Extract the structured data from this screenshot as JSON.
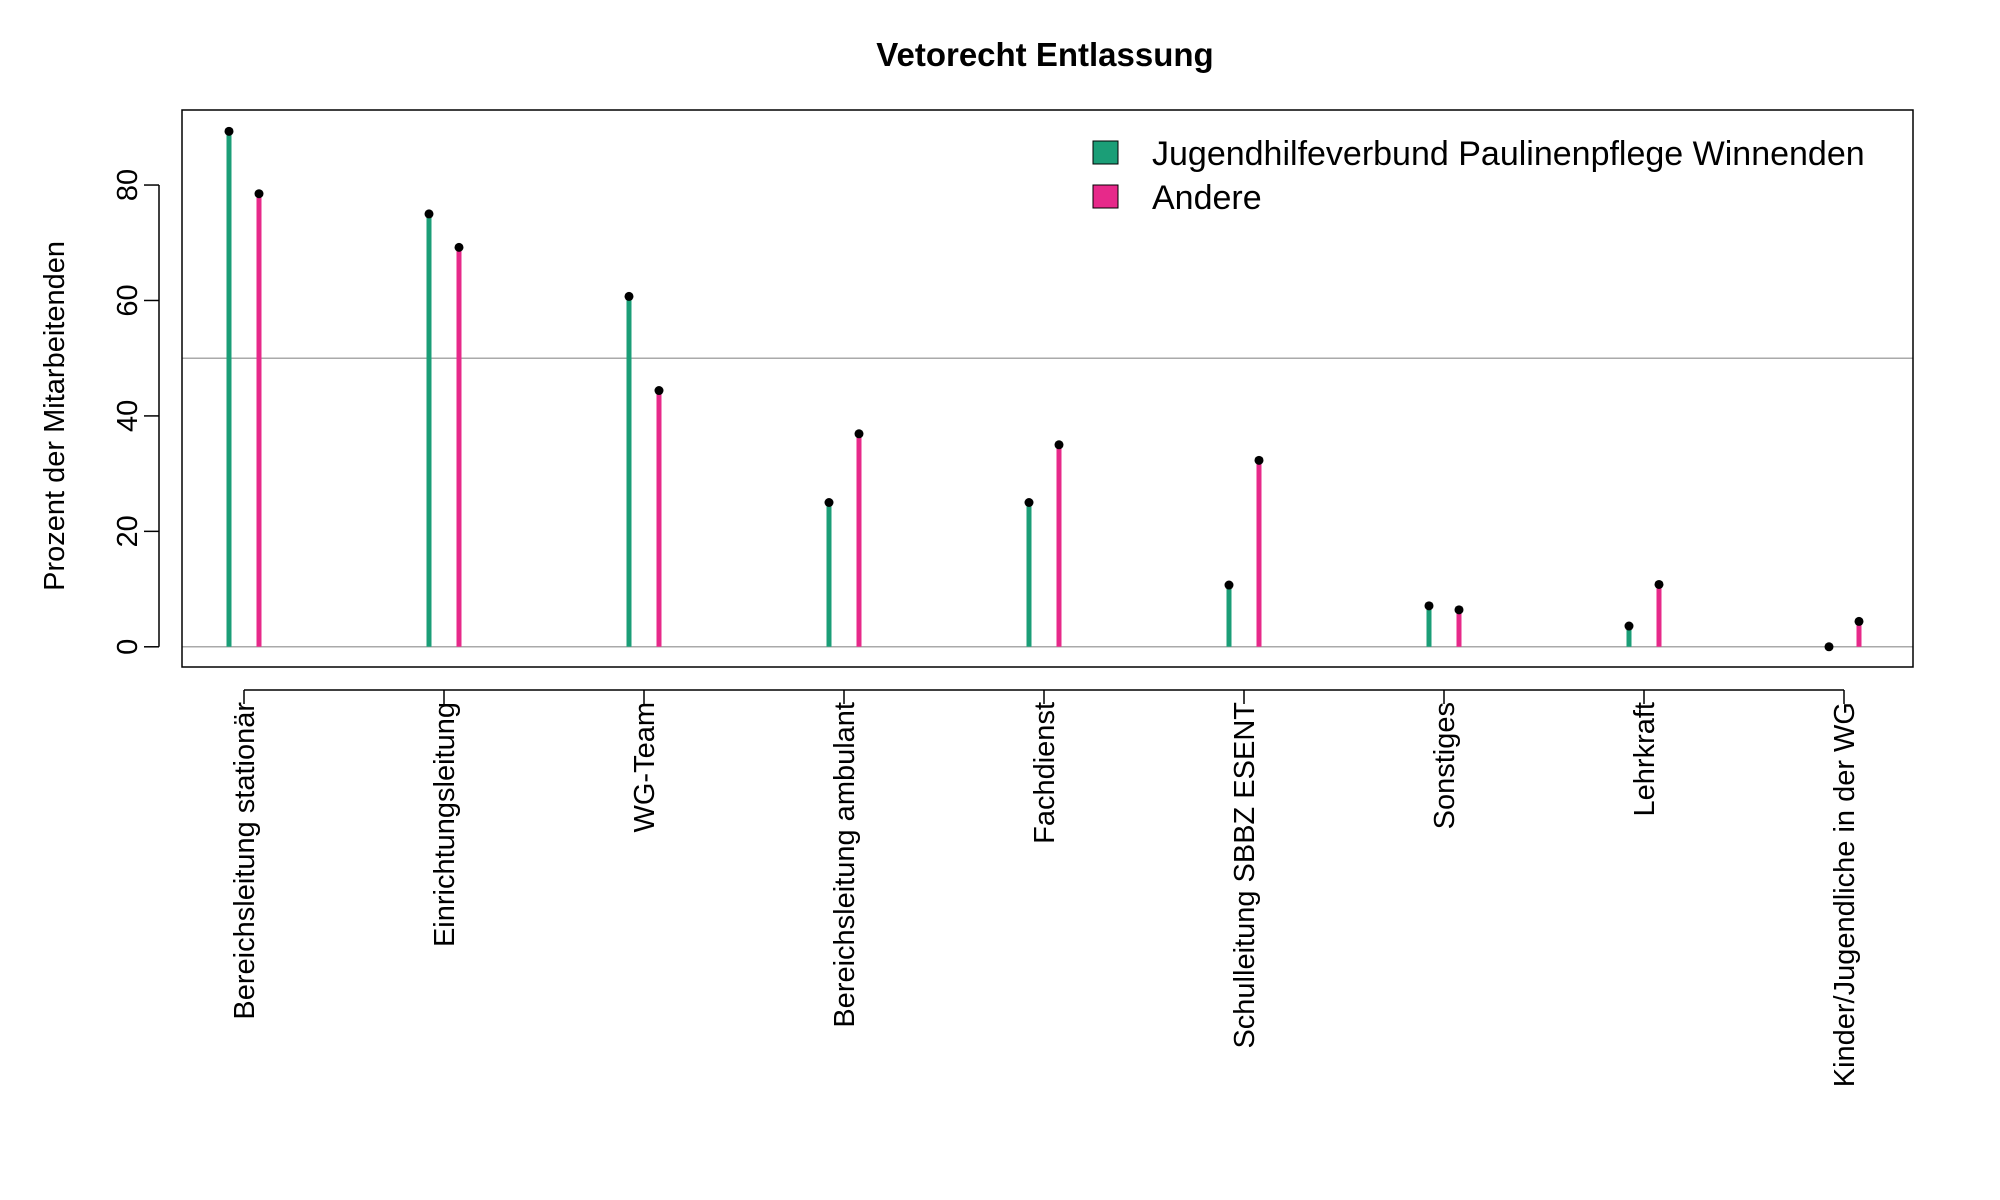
{
  "chart_data": {
    "type": "lollipop",
    "title": "Vetorecht Entlassung",
    "xlabel": "",
    "ylabel": "Prozent der Mitarbeitenden",
    "ylim": [
      -3.5,
      93
    ],
    "yticks": [
      0,
      20,
      40,
      60,
      80
    ],
    "reference_line": 50,
    "legend_position": "top-right",
    "categories": [
      "Bereichsleitung stationär",
      "Einrichtungsleitung",
      "WG-Team",
      "Bereichsleitung ambulant",
      "Fachdienst",
      "Schulleitung SBBZ ESENT",
      "Sonstiges",
      "Lehrkraft",
      "Kinder/Jugendliche in der WG"
    ],
    "series": [
      {
        "name": "Jugendhilfeverbund Paulinenpflege Winnenden",
        "color": "#1b9e77",
        "values": [
          89.3,
          75,
          60.7,
          25,
          25,
          10.7,
          7.1,
          3.6,
          0
        ]
      },
      {
        "name": "Andere",
        "color": "#e7298a",
        "values": [
          78.5,
          69.2,
          44.4,
          36.9,
          35,
          32.3,
          6.4,
          10.8,
          4.4
        ]
      }
    ]
  }
}
